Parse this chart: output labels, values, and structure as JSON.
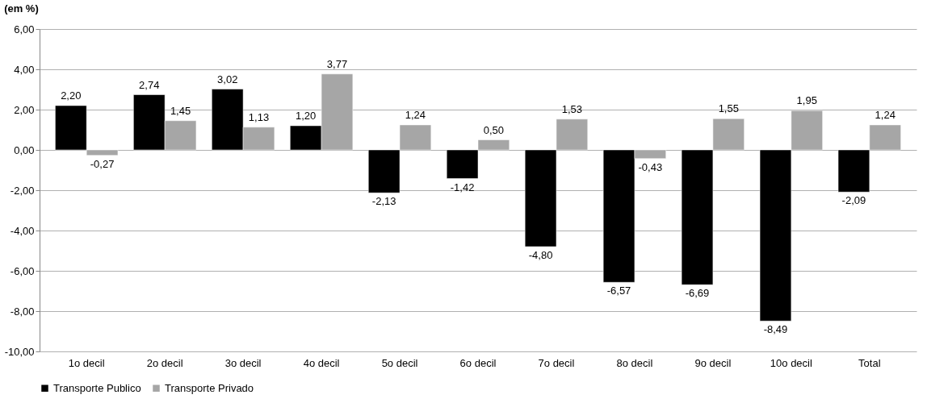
{
  "chart_data": {
    "type": "bar",
    "ylabel": "(em %)",
    "categories": [
      "1o decil",
      "2o decil",
      "3o decil",
      "4o decil",
      "5o decil",
      "6o decil",
      "7o decil",
      "8o decil",
      "9o decil",
      "10o decil",
      "Total"
    ],
    "series": [
      {
        "name": "Transporte Publico",
        "color": "#000000",
        "values": [
          2.2,
          2.74,
          3.02,
          1.2,
          -2.13,
          -1.42,
          -4.8,
          -6.57,
          -6.69,
          -8.49,
          -2.09
        ],
        "value_labels": [
          "2,20",
          "2,74",
          "3,02",
          "1,20",
          "-2,13",
          "-1,42",
          "-4,80",
          "-6,57",
          "-6,69",
          "-8,49",
          "-2,09"
        ]
      },
      {
        "name": "Transporte Privado",
        "color": "#a6a6a6",
        "values": [
          -0.27,
          1.45,
          1.13,
          3.77,
          1.24,
          0.5,
          1.53,
          -0.43,
          1.55,
          1.95,
          1.24
        ],
        "value_labels": [
          "-0,27",
          "1,45",
          "1,13",
          "3,77",
          "1,24",
          "0,50",
          "1,53",
          "-0,43",
          "1,55",
          "1,95",
          "1,24"
        ]
      }
    ],
    "ylim": [
      -10,
      6
    ],
    "yticks": [
      {
        "value": -10,
        "label": "-10,00"
      },
      {
        "value": -8,
        "label": "-8,00"
      },
      {
        "value": -6,
        "label": "-6,00"
      },
      {
        "value": -4,
        "label": "-4,00"
      },
      {
        "value": -2,
        "label": "-2,00"
      },
      {
        "value": 0,
        "label": "0,00"
      },
      {
        "value": 2,
        "label": "2,00"
      },
      {
        "value": 4,
        "label": "4,00"
      },
      {
        "value": 6,
        "label": "6,00"
      }
    ],
    "grid": "y",
    "legend": "bottom"
  }
}
